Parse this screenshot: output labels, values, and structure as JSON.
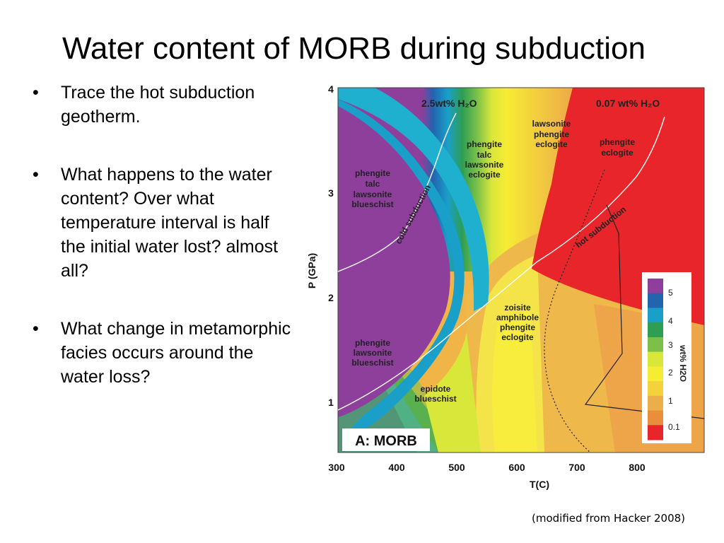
{
  "slide": {
    "title": "Water content of MORB during subduction",
    "bullets": [
      "Trace the hot subduction geotherm.",
      "What happens to the water content? Over what temperature interval is half the initial water lost? almost all?",
      "What change in metamorphic facies occurs around the water loss?"
    ],
    "bullet_marker": "•",
    "source": "(modified from Hacker 2008)"
  },
  "diagram": {
    "panel_label": "A: MORB",
    "x_axis": {
      "label": "T(C)",
      "ticks": [
        "300",
        "400",
        "500",
        "600",
        "700",
        "800"
      ]
    },
    "y_axis": {
      "label": "P (GPa)",
      "ticks": [
        "1",
        "2",
        "3",
        "4"
      ]
    },
    "water_labels": {
      "left": "2.5wt% H₂O",
      "right": "0.07 wt% H₂O"
    },
    "geotherms": {
      "cold": "cold subduction",
      "hot": "hot subduction"
    },
    "facies": {
      "lawsonite_blueschist": [
        "phengite",
        "talc",
        "lawsonite",
        "blueschist"
      ],
      "lawsonite_eclogite": [
        "phengite",
        "talc",
        "lawsonite",
        "eclogite"
      ],
      "lawsonite_phengite_eclogite": [
        "lawsonite",
        "phengite",
        "eclogite"
      ],
      "phengite_eclogite": [
        "phengite",
        "eclogite"
      ],
      "lower_blueschist": [
        "phengite",
        "lawsonite",
        "blueschist"
      ],
      "epidote_blueschist": [
        "epidote",
        "blueschist"
      ],
      "amphibole_eclogite": [
        "zoisite",
        "amphibole",
        "phengite",
        "eclogite"
      ]
    },
    "legend": {
      "title": "wt% H2O",
      "entries": [
        "5",
        "4",
        "3",
        "2",
        "1",
        "0.1"
      ],
      "colors": [
        "#8e3f9c",
        "#2264ae",
        "#1a9fc9",
        "#2e9e52",
        "#7cc04a",
        "#d9e73a",
        "#f7ec34",
        "#f3d23c",
        "#ebae4a",
        "#e98e3c",
        "#e8252a"
      ]
    },
    "colors": {
      "purple": "#8e3f9c",
      "cyan": "#17a4cc",
      "blue": "#1f6eb4",
      "green": "#2e9e52",
      "yellow": "#f6ea3a",
      "orange": "#f0a640",
      "red": "#e82428"
    }
  }
}
